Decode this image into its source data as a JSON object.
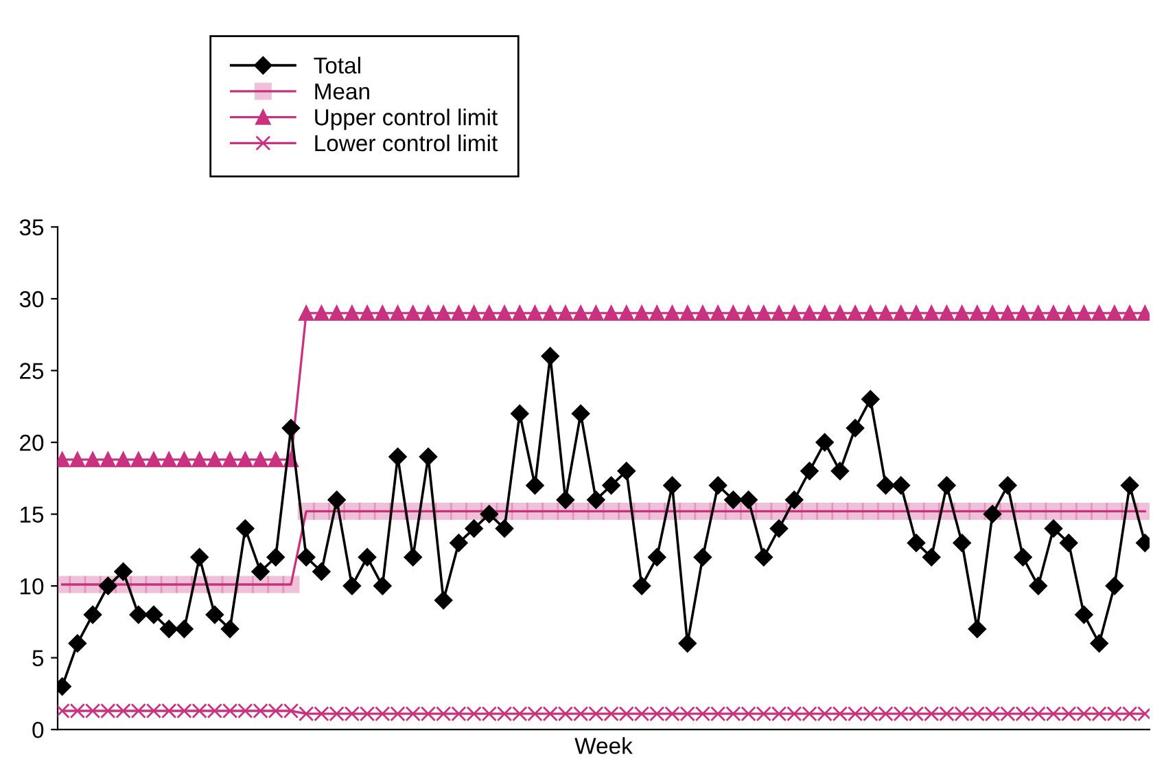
{
  "chart_data": {
    "type": "line",
    "xlabel": "Week",
    "categories": [
      null,
      null,
      null,
      null,
      null,
      null,
      null,
      null,
      null,
      null,
      null,
      null,
      null,
      null,
      null,
      null,
      null,
      null,
      null,
      null,
      null,
      null,
      null,
      null,
      null,
      null,
      null,
      null,
      null,
      null,
      null,
      null,
      null,
      null,
      null,
      null,
      null,
      null,
      null,
      null,
      null,
      null,
      null,
      null,
      null,
      null,
      null,
      null,
      null,
      null,
      null,
      null,
      null,
      null,
      null,
      null,
      null,
      null,
      null,
      null,
      null,
      null,
      null,
      null,
      null,
      null,
      null,
      null,
      null,
      null,
      null,
      null
    ],
    "ylim": [
      0,
      35
    ],
    "yticks": [
      0,
      5,
      10,
      15,
      20,
      25,
      30,
      35
    ],
    "tick_labels": "y",
    "grid": false,
    "legend": "top left",
    "line_style": "solid",
    "series": [
      {
        "name": "Total",
        "color": "#000000",
        "marker": "diamond",
        "values": [
          3,
          6,
          8,
          10,
          11,
          8,
          8,
          7,
          7,
          12,
          8,
          7,
          14,
          11,
          12,
          21,
          12,
          11,
          16,
          10,
          12,
          10,
          19,
          12,
          19,
          9,
          13,
          14,
          15,
          14,
          22,
          17,
          26,
          16,
          22,
          16,
          17,
          18,
          10,
          12,
          17,
          6,
          12,
          17,
          16,
          16,
          12,
          14,
          16,
          18,
          20,
          18,
          21,
          23,
          17,
          17,
          13,
          12,
          17,
          13,
          7,
          15,
          17,
          12,
          10,
          14,
          13,
          8,
          6,
          10,
          17,
          13
        ]
      },
      {
        "name": "Mean",
        "color": "#c8327f",
        "marker": "square",
        "values": [
          10.1,
          10.1,
          10.1,
          10.1,
          10.1,
          10.1,
          10.1,
          10.1,
          10.1,
          10.1,
          10.1,
          10.1,
          10.1,
          10.1,
          10.1,
          10.1,
          15.2,
          15.2,
          15.2,
          15.2,
          15.2,
          15.2,
          15.2,
          15.2,
          15.2,
          15.2,
          15.2,
          15.2,
          15.2,
          15.2,
          15.2,
          15.2,
          15.2,
          15.2,
          15.2,
          15.2,
          15.2,
          15.2,
          15.2,
          15.2,
          15.2,
          15.2,
          15.2,
          15.2,
          15.2,
          15.2,
          15.2,
          15.2,
          15.2,
          15.2,
          15.2,
          15.2,
          15.2,
          15.2,
          15.2,
          15.2,
          15.2,
          15.2,
          15.2,
          15.2,
          15.2,
          15.2,
          15.2,
          15.2,
          15.2,
          15.2,
          15.2,
          15.2,
          15.2,
          15.2,
          15.2,
          15.2
        ]
      },
      {
        "name": "Upper control limit",
        "color": "#c8327f",
        "marker": "triangle",
        "values": [
          18.8,
          18.8,
          18.8,
          18.8,
          18.8,
          18.8,
          18.8,
          18.8,
          18.8,
          18.8,
          18.8,
          18.8,
          18.8,
          18.8,
          18.8,
          18.8,
          29,
          29,
          29,
          29,
          29,
          29,
          29,
          29,
          29,
          29,
          29,
          29,
          29,
          29,
          29,
          29,
          29,
          29,
          29,
          29,
          29,
          29,
          29,
          29,
          29,
          29,
          29,
          29,
          29,
          29,
          29,
          29,
          29,
          29,
          29,
          29,
          29,
          29,
          29,
          29,
          29,
          29,
          29,
          29,
          29,
          29,
          29,
          29,
          29,
          29,
          29,
          29,
          29,
          29,
          29,
          29
        ]
      },
      {
        "name": "Lower control limit",
        "color": "#c8327f",
        "marker": "cross",
        "values": [
          1.3,
          1.3,
          1.3,
          1.3,
          1.3,
          1.3,
          1.3,
          1.3,
          1.3,
          1.3,
          1.3,
          1.3,
          1.3,
          1.3,
          1.3,
          1.3,
          1.1,
          1.1,
          1.1,
          1.1,
          1.1,
          1.1,
          1.1,
          1.1,
          1.1,
          1.1,
          1.1,
          1.1,
          1.1,
          1.1,
          1.1,
          1.1,
          1.1,
          1.1,
          1.1,
          1.1,
          1.1,
          1.1,
          1.1,
          1.1,
          1.1,
          1.1,
          1.1,
          1.1,
          1.1,
          1.1,
          1.1,
          1.1,
          1.1,
          1.1,
          1.1,
          1.1,
          1.1,
          1.1,
          1.1,
          1.1,
          1.1,
          1.1,
          1.1,
          1.1,
          1.1,
          1.1,
          1.1,
          1.1,
          1.1,
          1.1,
          1.1,
          1.1,
          1.1,
          1.1,
          1.1,
          1.1
        ]
      }
    ]
  }
}
